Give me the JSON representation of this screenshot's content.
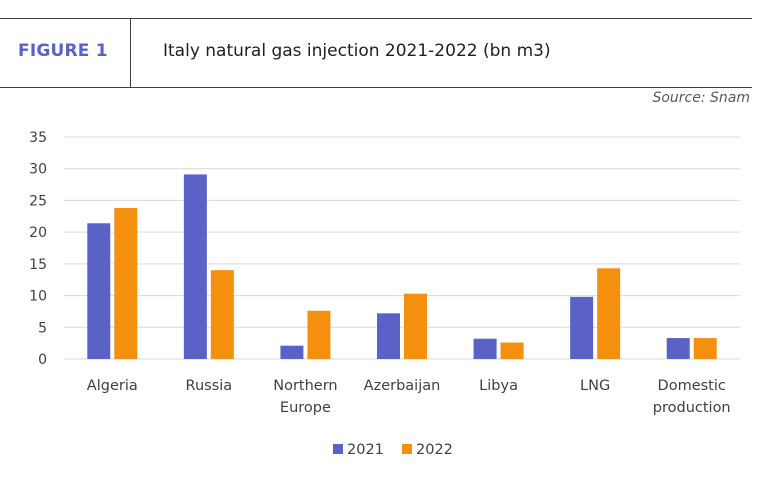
{
  "header": {
    "figure_label": "FIGURE 1",
    "title": "Italy natural gas injection 2021-2022 (bn m3)",
    "source": "Source: Snam"
  },
  "colors": {
    "series_2021": "#5a62c8",
    "series_2022": "#f5900e",
    "gridline": "#d9d9d9",
    "accent": "#5a62c8"
  },
  "chart_data": {
    "type": "bar",
    "title": "Italy natural gas injection 2021-2022 (bn m3)",
    "xlabel": "",
    "ylabel": "",
    "ylim": [
      0,
      35
    ],
    "yticks": [
      0,
      5,
      10,
      15,
      20,
      25,
      30,
      35
    ],
    "grid": true,
    "legend_position": "bottom",
    "categories": [
      [
        "Algeria"
      ],
      [
        "Russia"
      ],
      [
        "Northern",
        "Europe"
      ],
      [
        "Azerbaijan"
      ],
      [
        "Libya"
      ],
      [
        "LNG"
      ],
      [
        "Domestic",
        "production"
      ]
    ],
    "series": [
      {
        "name": "2021",
        "color": "#5a62c8",
        "values": [
          21.4,
          29.1,
          2.1,
          7.2,
          3.2,
          9.8,
          3.3
        ]
      },
      {
        "name": "2022",
        "color": "#f5900e",
        "values": [
          23.8,
          14.0,
          7.6,
          10.3,
          2.6,
          14.3,
          3.3
        ]
      }
    ]
  }
}
